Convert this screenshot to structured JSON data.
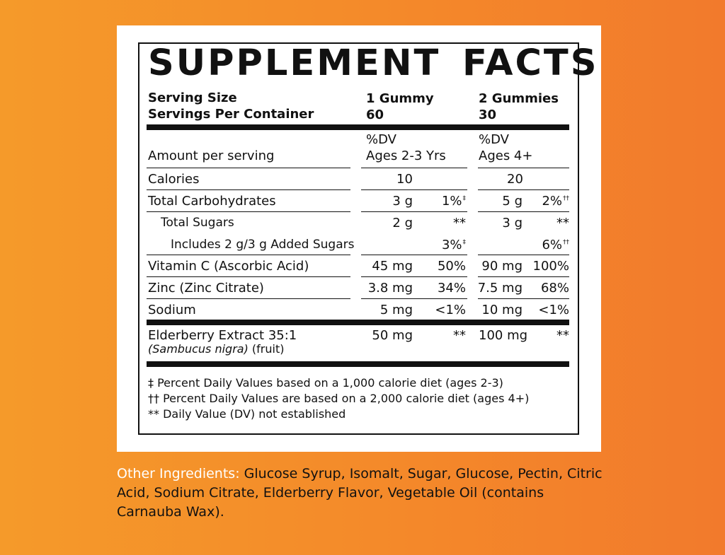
{
  "facts": {
    "title": "SUPPLEMENT FACTS",
    "serving_size_label": "Serving Size",
    "servings_label": "Servings Per Container",
    "col1": {
      "serving": "1 Gummy",
      "servings": "60",
      "dv": "%DV",
      "ages": "Ages 2-3 Yrs"
    },
    "col2": {
      "serving": "2 Gummies",
      "servings": "30",
      "dv": "%DV",
      "ages": "Ages 4+"
    },
    "amount_label": "Amount per serving",
    "rows": [
      {
        "name": "Calories",
        "a1": "10",
        "d1": "",
        "d1sym": "",
        "a2": "20",
        "d2": "",
        "d2sym": ""
      },
      {
        "name": "Total Carbohydrates",
        "a1": "3 g",
        "d1": "1%",
        "d1sym": "‡",
        "a2": "5 g",
        "d2": "2%",
        "d2sym": "††"
      },
      {
        "name": "Total Sugars",
        "a1": "2 g",
        "d1": "**",
        "d1sym": "",
        "a2": "3 g",
        "d2": "**",
        "d2sym": ""
      },
      {
        "name": "Includes 2 g/3 g Added Sugars",
        "a1": "",
        "d1": "3%",
        "d1sym": "‡",
        "a2": "",
        "d2": "6%",
        "d2sym": "††"
      },
      {
        "name": "Vitamin C (Ascorbic Acid)",
        "a1": "45 mg",
        "d1": "50%",
        "d1sym": "",
        "a2": "90 mg",
        "d2": "100%",
        "d2sym": ""
      },
      {
        "name": "Zinc (Zinc Citrate)",
        "a1": "3.8 mg",
        "d1": "34%",
        "d1sym": "",
        "a2": "7.5 mg",
        "d2": "68%",
        "d2sym": ""
      },
      {
        "name": "Sodium",
        "a1": "5 mg",
        "d1": "<1%",
        "d1sym": "",
        "a2": "10 mg",
        "d2": "<1%",
        "d2sym": ""
      }
    ],
    "elderberry": {
      "name": "Elderberry Extract 35:1",
      "latin": "(Sambucus nigra)",
      "part": "(fruit)",
      "a1": "50 mg",
      "d1": "**",
      "a2": "100 mg",
      "d2": "**"
    },
    "footnotes": [
      "‡ Percent Daily Values based on a 1,000 calorie diet (ages 2-3)",
      "†† Percent Daily Values are based on a 2,000 calorie diet (ages 4+)",
      "** Daily Value (DV) not established"
    ]
  },
  "other_ingredients": {
    "label": "Other Ingredients:",
    "text": "Glucose Syrup, Isomalt, Sugar, Glucose, Pectin, Citric Acid, Sodium Citrate, Elderberry Flavor, Vegetable Oil (contains Carnauba Wax)."
  },
  "colors": {
    "background": "#f4892a",
    "label_white": "#ffffff",
    "ink": "#111111"
  }
}
